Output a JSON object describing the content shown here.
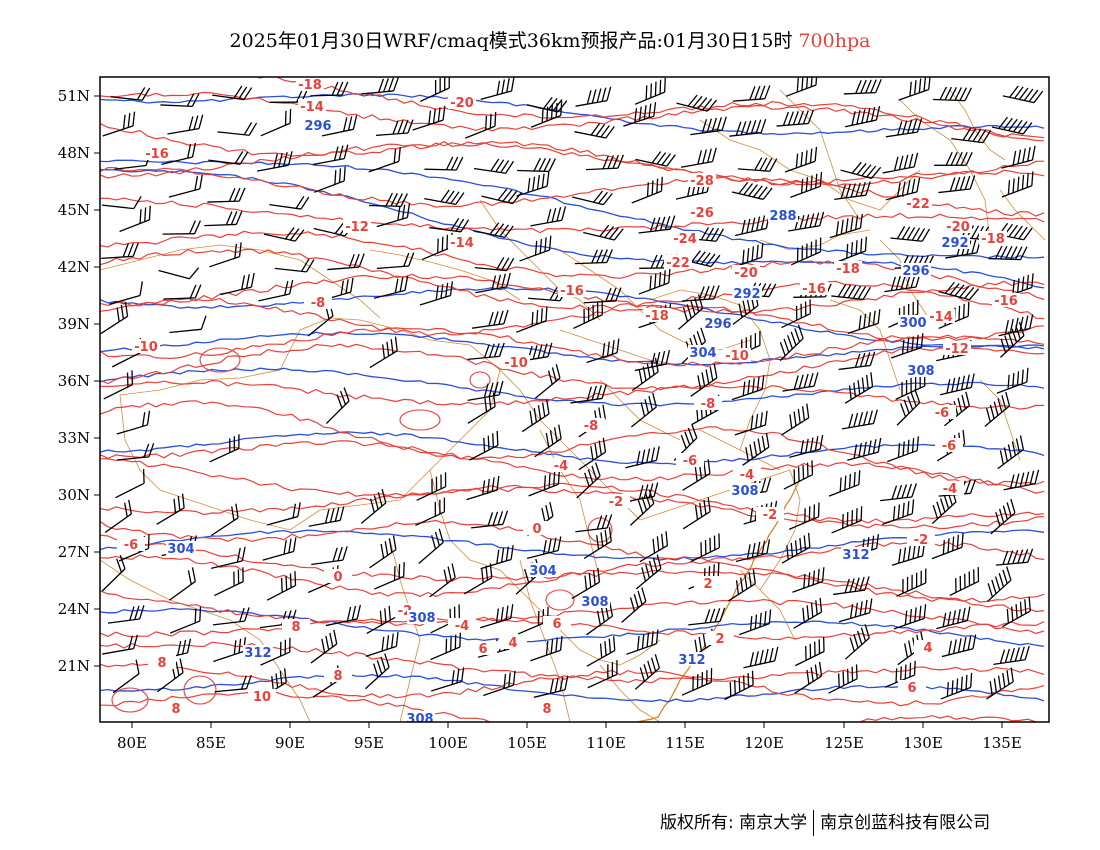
{
  "title": {
    "main": "2025年01月30日WRF/cmaq模式36km预报产品:01月30日15时",
    "level": "700hpa"
  },
  "colors": {
    "temperature": "#e8403a",
    "geopotential": "#2a4fd8",
    "borders": "#d98a3a",
    "wind": "#000000"
  },
  "axes": {
    "lat_labels": [
      "51N",
      "48N",
      "45N",
      "42N",
      "39N",
      "36N",
      "33N",
      "30N",
      "27N",
      "24N",
      "21N"
    ],
    "lon_labels": [
      "80E",
      "85E",
      "90E",
      "95E",
      "100E",
      "105E",
      "110E",
      "115E",
      "120E",
      "125E",
      "130E",
      "135E"
    ]
  },
  "temperature_labels": [
    "-18",
    "-14",
    "-20",
    "-16",
    "-28",
    "-26",
    "-24",
    "-22",
    "-22",
    "-20",
    "-18",
    "-12",
    "-14",
    "-16",
    "-16",
    "-20",
    "-18",
    "-16",
    "-18",
    "-10",
    "-10",
    "-14",
    "-12",
    "-8",
    "-10",
    "-8",
    "-8",
    "-6",
    "-6",
    "-6",
    "-4",
    "-4",
    "-4",
    "-2",
    "-2",
    "-2",
    "0",
    "0",
    "-2",
    "-4",
    "2",
    "4",
    "6",
    "6",
    "8",
    "8",
    "10",
    "8",
    "8",
    "2",
    "4",
    "6",
    "8",
    "-6"
  ],
  "height_labels": [
    "296",
    "288",
    "292",
    "296",
    "292",
    "296",
    "300",
    "304",
    "308",
    "304",
    "308",
    "312",
    "308",
    "308",
    "304",
    "312",
    "312",
    "308"
  ],
  "footer": {
    "left": "版权所有: 南京大学",
    "right": "南京创蓝科技有限公司"
  }
}
